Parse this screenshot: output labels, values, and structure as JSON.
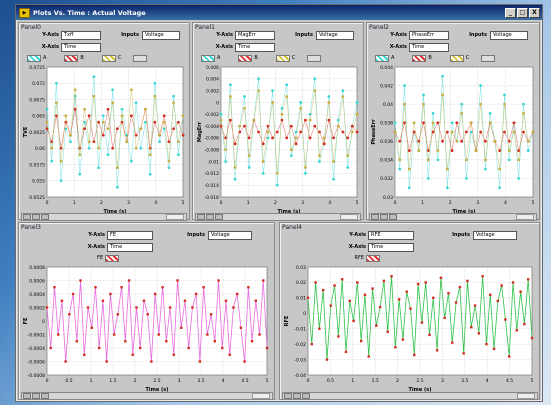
{
  "window": {
    "title": "Plots Vs. Time : Actual Voltage",
    "buttons": [
      "_",
      "□",
      "X"
    ]
  },
  "colors": {
    "cyan": "#3cd6d6",
    "red": "#d32b20",
    "yellow": "#c8b040",
    "pink": "#e86ae0",
    "green": "#2fc24a"
  },
  "panels": [
    {
      "label": "Panel0",
      "y_axis_label": "Y-Axis",
      "y_axis_value": "Txff",
      "x_axis_label": "X-Axis",
      "x_axis_value": "Time",
      "inputs_label": "Inputs",
      "inputs_value": "Voltage",
      "legend": [
        "A",
        "B",
        "C"
      ]
    },
    {
      "label": "Panel1",
      "y_axis_label": "Y-Axis",
      "y_axis_value": "MagErr",
      "x_axis_label": "X-Axis",
      "x_axis_value": "Time",
      "inputs_label": "Inputs",
      "inputs_value": "Voltage",
      "legend": [
        "A",
        "B",
        "C"
      ]
    },
    {
      "label": "Panel2",
      "y_axis_label": "Y-Axis",
      "y_axis_value": "PhaseErr",
      "x_axis_label": "X-Axis",
      "x_axis_value": "Time",
      "inputs_label": "Inputs",
      "inputs_value": "Voltage",
      "legend": [
        "A",
        "B",
        "C"
      ]
    },
    {
      "label": "Panel3",
      "y_axis_label": "Y-Axis",
      "y_axis_value": "FE",
      "x_axis_label": "X-Axis",
      "x_axis_value": "Time",
      "inputs_label": "Inputs",
      "inputs_value": "Voltage",
      "legend": [
        "FE"
      ]
    },
    {
      "label": "Panel4",
      "y_axis_label": "Y-Axis",
      "y_axis_value": "RFE",
      "x_axis_label": "X-Axis",
      "x_axis_value": "Time",
      "inputs_label": "Inputs",
      "inputs_value": "Voltage",
      "legend": [
        "RFE"
      ]
    }
  ],
  "chart_data": [
    {
      "type": "scatter",
      "ylabel": "TVE",
      "xlabel": "Time (s)",
      "xlim": [
        0,
        5
      ],
      "ylim": [
        0.0525,
        0.0725
      ],
      "xticks": [
        "0",
        "1",
        "2",
        "3",
        "4",
        "5"
      ],
      "yticks": [
        "0.0725",
        "0.072",
        "0.0675",
        "0.065",
        "0.0625",
        "0.06",
        "0.0575",
        "0.055",
        "0.0525"
      ],
      "series": [
        {
          "color": "cyan",
          "values": [
            0.066,
            0.058,
            0.07,
            0.055,
            0.063,
            0.061,
            0.068,
            0.056,
            0.064,
            0.06,
            0.071,
            0.057,
            0.065,
            0.059,
            0.069,
            0.054,
            0.066,
            0.062,
            0.058,
            0.067,
            0.06,
            0.064,
            0.056,
            0.07,
            0.061,
            0.063,
            0.057,
            0.068,
            0.059,
            0.065
          ]
        },
        {
          "color": "red",
          "values": [
            0.063,
            0.061,
            0.065,
            0.06,
            0.064,
            0.062,
            0.066,
            0.06,
            0.063,
            0.065,
            0.061,
            0.064,
            0.062,
            0.066,
            0.06,
            0.063,
            0.064,
            0.061,
            0.065,
            0.062,
            0.063,
            0.066,
            0.06,
            0.064,
            0.062,
            0.065,
            0.061,
            0.063,
            0.064,
            0.062
          ]
        },
        {
          "color": "yellow",
          "values": [
            0.064,
            0.06,
            0.067,
            0.058,
            0.065,
            0.062,
            0.069,
            0.059,
            0.066,
            0.061,
            0.068,
            0.06,
            0.064,
            0.063,
            0.067,
            0.057,
            0.065,
            0.061,
            0.069,
            0.06,
            0.063,
            0.066,
            0.059,
            0.068,
            0.062,
            0.064,
            0.058,
            0.067,
            0.061,
            0.065
          ]
        }
      ]
    },
    {
      "type": "scatter",
      "ylabel": "MagErr",
      "xlabel": "Time (s)",
      "xlim": [
        0,
        5
      ],
      "ylim": [
        -0.016,
        0.006
      ],
      "xticks": [
        "0",
        "1",
        "2",
        "3",
        "4",
        "5"
      ],
      "yticks": [
        "0.006",
        "0.004",
        "0.002",
        "0",
        "-0.002",
        "-0.004",
        "-0.006",
        "-0.008",
        "-0.01",
        "-0.012",
        "-0.014",
        "-0.016"
      ],
      "series": [
        {
          "color": "cyan",
          "values": [
            -0.002,
            -0.01,
            0.003,
            -0.013,
            -0.004,
            0.001,
            -0.011,
            -0.003,
            0.004,
            -0.012,
            -0.006,
            0.002,
            -0.014,
            -0.001,
            0.003,
            -0.009,
            -0.005,
            0.0,
            -0.012,
            -0.002,
            0.004,
            -0.01,
            -0.007,
            0.001,
            -0.013,
            -0.003,
            0.002,
            -0.011,
            -0.004,
            0.0
          ]
        },
        {
          "color": "red",
          "values": [
            -0.004,
            -0.006,
            -0.003,
            -0.007,
            -0.005,
            -0.004,
            -0.006,
            -0.003,
            -0.005,
            -0.007,
            -0.004,
            -0.006,
            -0.005,
            -0.003,
            -0.006,
            -0.004,
            -0.007,
            -0.005,
            -0.003,
            -0.006,
            -0.004,
            -0.005,
            -0.007,
            -0.003,
            -0.006,
            -0.004,
            -0.005,
            -0.006,
            -0.004,
            -0.005
          ]
        },
        {
          "color": "yellow",
          "values": [
            -0.003,
            -0.008,
            0.001,
            -0.011,
            -0.004,
            -0.001,
            -0.009,
            -0.003,
            0.002,
            -0.01,
            -0.005,
            0.0,
            -0.012,
            -0.002,
            0.001,
            -0.008,
            -0.006,
            -0.001,
            -0.011,
            -0.003,
            0.002,
            -0.009,
            -0.006,
            0.0,
            -0.01,
            -0.004,
            0.001,
            -0.009,
            -0.005,
            -0.002
          ]
        }
      ]
    },
    {
      "type": "scatter",
      "ylabel": "PhaseErr",
      "xlabel": "Time (s)",
      "xlim": [
        0,
        5
      ],
      "ylim": [
        0.03,
        0.044
      ],
      "xticks": [
        "0",
        "1",
        "2",
        "3",
        "4",
        "5"
      ],
      "yticks": [
        "0.044",
        "0.042",
        "0.04",
        "0.038",
        "0.036",
        "0.034",
        "0.032",
        "0.03"
      ],
      "series": [
        {
          "color": "cyan",
          "values": [
            0.038,
            0.033,
            0.042,
            0.031,
            0.037,
            0.035,
            0.041,
            0.032,
            0.039,
            0.034,
            0.043,
            0.031,
            0.038,
            0.036,
            0.04,
            0.032,
            0.037,
            0.035,
            0.042,
            0.033,
            0.039,
            0.036,
            0.031,
            0.041,
            0.034,
            0.038,
            0.032,
            0.04,
            0.035,
            0.037
          ]
        },
        {
          "color": "red",
          "values": [
            0.037,
            0.036,
            0.038,
            0.035,
            0.037,
            0.036,
            0.038,
            0.035,
            0.037,
            0.038,
            0.036,
            0.037,
            0.035,
            0.038,
            0.036,
            0.037,
            0.038,
            0.035,
            0.037,
            0.036,
            0.038,
            0.036,
            0.035,
            0.037,
            0.036,
            0.038,
            0.035,
            0.037,
            0.036,
            0.037
          ]
        },
        {
          "color": "yellow",
          "values": [
            0.037,
            0.034,
            0.04,
            0.033,
            0.038,
            0.035,
            0.04,
            0.034,
            0.038,
            0.035,
            0.041,
            0.033,
            0.037,
            0.036,
            0.039,
            0.034,
            0.038,
            0.035,
            0.04,
            0.034,
            0.038,
            0.036,
            0.033,
            0.04,
            0.035,
            0.037,
            0.034,
            0.039,
            0.036,
            0.037
          ]
        }
      ]
    },
    {
      "type": "line",
      "ylabel": "FE",
      "xlabel": "Time (s)",
      "xlim": [
        0,
        5
      ],
      "ylim": [
        -0.0008,
        0.0008
      ],
      "xticks": [
        "0",
        "0.5",
        "1",
        "1.5",
        "2",
        "2.5",
        "3",
        "3.5",
        "4",
        "4.5",
        "5"
      ],
      "yticks": [
        "0.0008",
        "0.0006",
        "0.0004",
        "0.0002",
        "0",
        "-0.0002",
        "-0.0004",
        "-0.0006",
        "-0.0008"
      ],
      "series": [
        {
          "color": "pink",
          "values": [
            0.0002,
            -0.0004,
            0.0005,
            -0.0002,
            0.0003,
            -0.0006,
            0.0001,
            0.0004,
            -0.0003,
            0.0006,
            -0.0005,
            0.0002,
            -0.0001,
            0.0005,
            -0.0004,
            0.0003,
            -0.0006,
            0.0004,
            -0.0002,
            0.0001,
            0.0005,
            -0.0003,
            0.0006,
            -0.0005,
            0.0002,
            -0.0004,
            0.0003,
            0.0001,
            -0.0006,
            0.0004,
            -0.0002,
            0.0005,
            -0.0003,
            0.0002,
            -0.0005,
            0.0006,
            -0.0001,
            0.0003,
            -0.0004,
            0.0002,
            0.0004,
            -0.0006,
            0.0005,
            -0.0002,
            0.0001,
            -0.0003,
            0.0006,
            -0.0004,
            0.0003,
            -0.0005,
            0.0002,
            0.0004,
            -0.0001,
            -0.0006,
            0.0005,
            -0.0003,
            0.0003,
            -0.0002,
            0.0006,
            -0.0004
          ]
        }
      ]
    },
    {
      "type": "line",
      "ylabel": "RFE",
      "xlabel": "Time (s)",
      "xlim": [
        0,
        5
      ],
      "ylim": [
        -0.04,
        0.03
      ],
      "xticks": [
        "0",
        "0.5",
        "1",
        "1.5",
        "2",
        "2.5",
        "3",
        "3.5",
        "4",
        "4.5",
        "5"
      ],
      "yticks": [
        "0.03",
        "0.02",
        "0.01",
        "0",
        "-0.01",
        "-0.02",
        "-0.03",
        "-0.04"
      ],
      "series": [
        {
          "color": "green",
          "values": [
            0.01,
            -0.02,
            0.02,
            -0.01,
            0.015,
            -0.03,
            0.005,
            0.018,
            -0.015,
            0.022,
            -0.025,
            0.008,
            -0.005,
            0.02,
            -0.018,
            0.012,
            -0.028,
            0.016,
            -0.008,
            0.004,
            0.021,
            -0.012,
            0.024,
            -0.022,
            0.009,
            -0.017,
            0.014,
            0.003,
            -0.027,
            0.019,
            -0.006,
            0.02,
            -0.014,
            0.01,
            -0.024,
            0.023,
            -0.003,
            0.013,
            -0.019,
            0.007,
            0.017,
            -0.026,
            0.021,
            -0.009,
            0.005,
            -0.013,
            0.024,
            -0.02,
            0.012,
            -0.023,
            0.008,
            0.018,
            -0.004,
            -0.028,
            0.02,
            -0.011,
            0.014,
            -0.007,
            0.022,
            -0.016
          ]
        }
      ]
    }
  ]
}
